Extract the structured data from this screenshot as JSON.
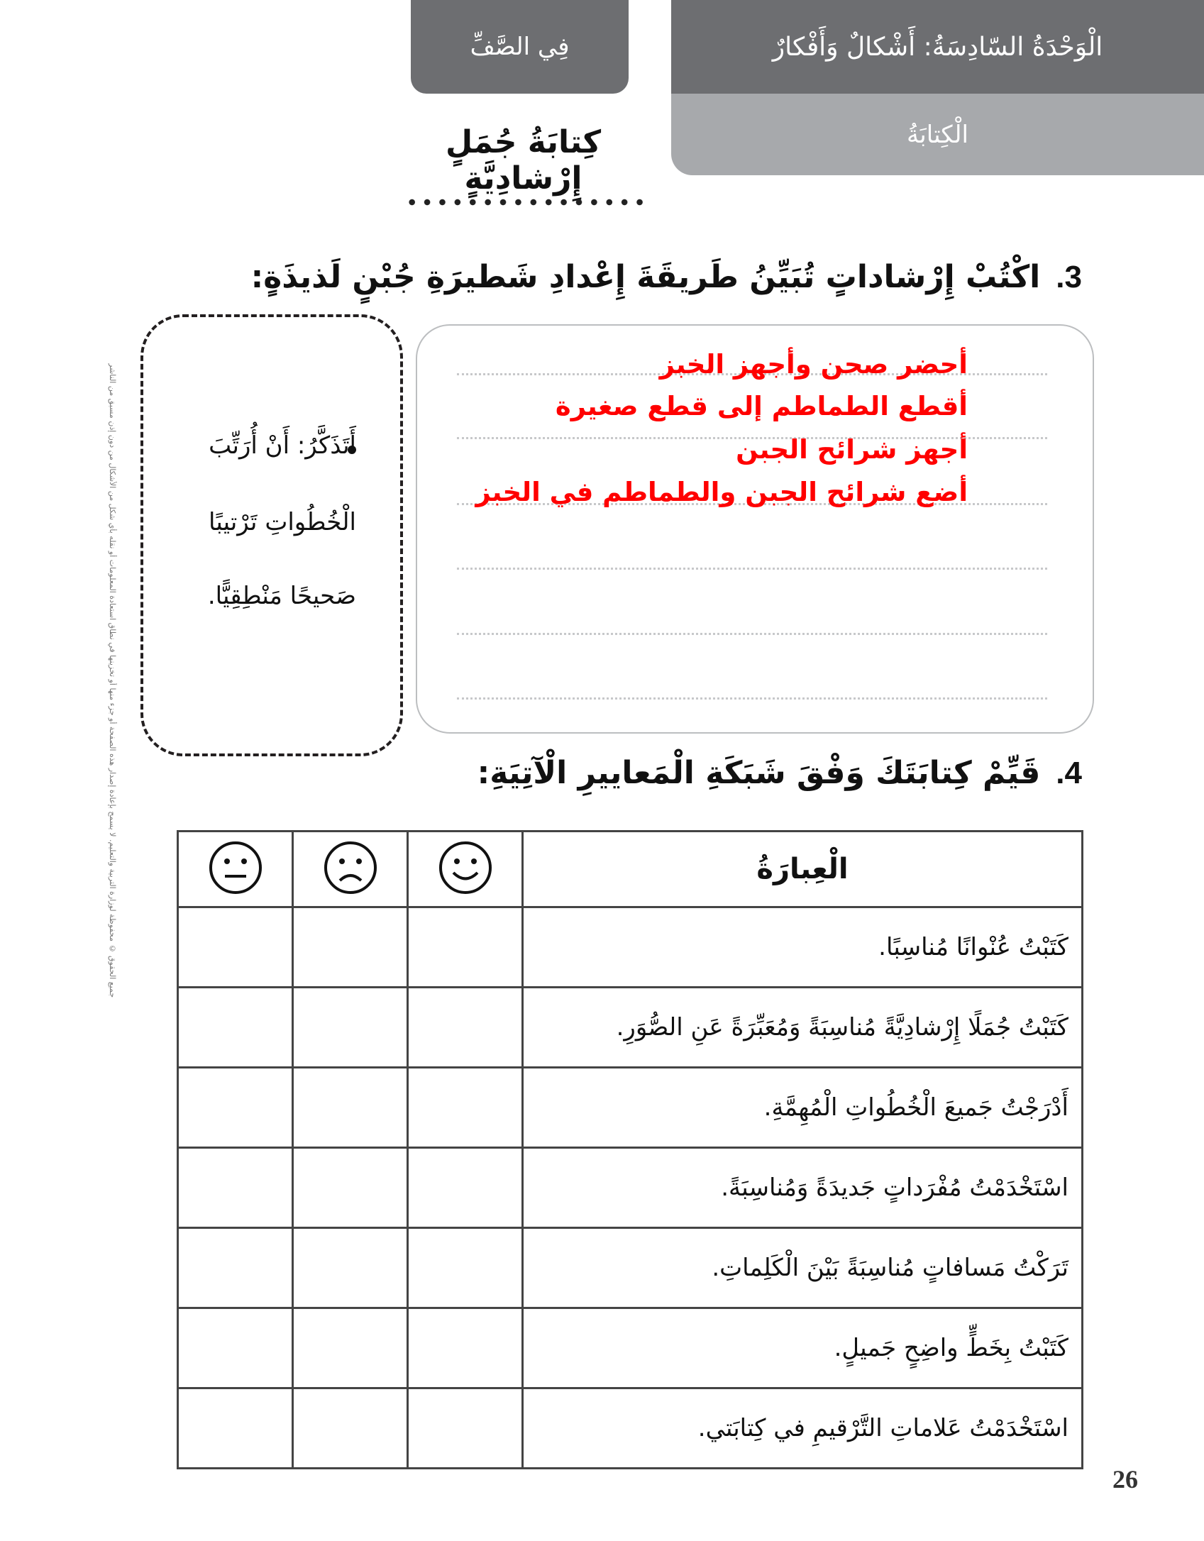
{
  "header": {
    "tab_label": "فِي الصَّفِّ",
    "unit_title": "الْوَحْدَةُ السّادِسَةُ: أَشْكالٌ وَأَفْكارٌ",
    "section": "الْكِتابَةُ"
  },
  "lesson_title": "كِتابَةُ جُمَلٍ إِرْشادِيَّةٍ",
  "question3": {
    "number": "3.",
    "text": "اكْتُبْ إِرْشاداتٍ تُبَيِّنُ طَريقَةَ إِعْدادِ شَطيرَةِ جُبْنٍ لَذيذَةٍ:",
    "answers": [
      "أحضر صحن وأجهز الخبز",
      "أقطع الطماطم إلى قطع صغيرة",
      "أجهز شرائح الجبن",
      "أضع شرائح الجبن والطماطم في الخبز"
    ],
    "answer_color": "#ff0000"
  },
  "reminder": {
    "lines": [
      "أَتَذَكَّرُ: أَنْ أُرَتِّبَ",
      "الْخُطُواتِ تَرْتيبًا",
      "صَحيحًا مَنْطِقِيًّا."
    ]
  },
  "question4": {
    "number": "4.",
    "text": "قَيِّمْ كِتابَتَكَ وَفْقَ شَبَكَةِ الْمَعاييرِ الْآتِيَةِ:"
  },
  "rubric": {
    "header": "الْعِبارَةُ",
    "face_icons": [
      "neutral-face-icon",
      "sad-face-icon",
      "happy-face-icon"
    ],
    "rows": [
      "كَتَبْتُ عُنْوانًا مُناسِبًا.",
      "كَتَبْتُ جُمَلًا إِرْشادِيَّةً مُناسِبَةً وَمُعَبِّرَةً عَنِ الصُّوَرِ.",
      "أَدْرَجْتُ جَميعَ الْخُطُواتِ الْمُهِمَّةِ.",
      "اسْتَخْدَمْتُ مُفْرَداتٍ جَديدَةً وَمُناسِبَةً.",
      "تَرَكْتُ مَسافاتٍ مُناسِبَةً بَيْنَ الْكَلِماتِ.",
      "كَتَبْتُ بِخَطٍّ واضِحٍ جَميلٍ.",
      "اسْتَخْدَمْتُ عَلاماتِ التَّرْقيمِ في كِتابَتي."
    ]
  },
  "copyright": "جميع الحقوق © محفوظة لوزارة التربية والتعليم. لا يسمح بإعادة إصدار هذه الصفحة أو جزء منها أو تخزينها في نطاق استعادة المعلومات أو نقله بأي شكل من الأشكال من دون إذن مسبق من الناشر",
  "page_number": "26"
}
